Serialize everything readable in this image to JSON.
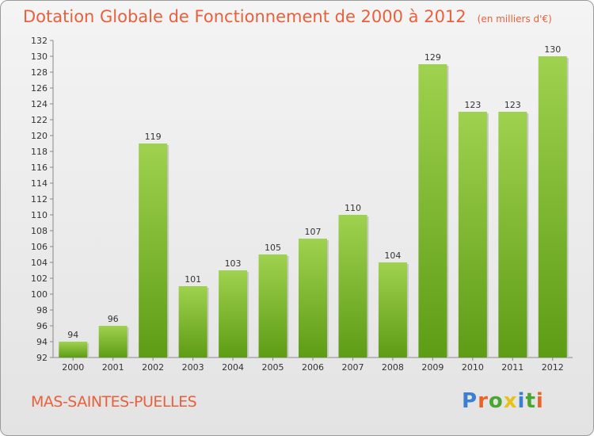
{
  "header": {
    "title": "Dotation Globale de Fonctionnement de 2000 à 2012",
    "unit_note": "(en milliers d'€)"
  },
  "footer": {
    "commune": "MAS-SAINTES-PUELLES",
    "logo_text": "Proxiti"
  },
  "colors": {
    "title": "#e8603c",
    "bar_light": "#9fd24e",
    "bar_dark": "#5e9c16"
  },
  "chart_data": {
    "type": "bar",
    "title": "Dotation Globale de Fonctionnement de 2000 à 2012",
    "categories": [
      "2000",
      "2001",
      "2002",
      "2003",
      "2004",
      "2005",
      "2006",
      "2007",
      "2008",
      "2009",
      "2010",
      "2011",
      "2012"
    ],
    "values": [
      94,
      96,
      119,
      101,
      103,
      105,
      107,
      110,
      104,
      129,
      123,
      123,
      130
    ],
    "ylim": [
      92,
      132
    ],
    "yticks": [
      92,
      94,
      96,
      98,
      100,
      102,
      104,
      106,
      108,
      110,
      112,
      114,
      116,
      118,
      120,
      122,
      124,
      126,
      128,
      130,
      132
    ],
    "grid": false,
    "xlabel": "",
    "ylabel": ""
  }
}
